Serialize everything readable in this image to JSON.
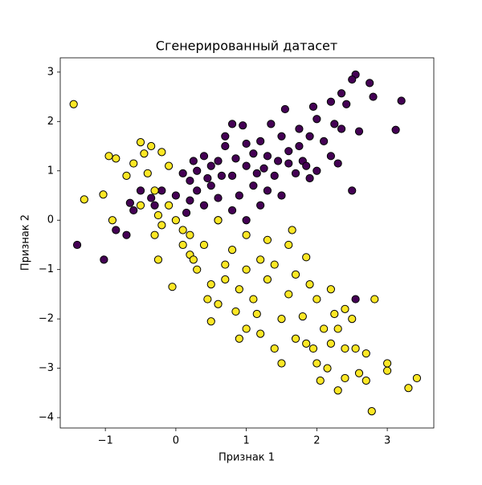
{
  "chart_data": {
    "type": "scatter",
    "title": "Сгенерированный датасет",
    "x_label": "Признак 1",
    "y_label": "Признак 2",
    "xlim": [
      -1.64,
      3.66
    ],
    "ylim": [
      -4.21,
      3.29
    ],
    "xticks": [
      {
        "value": -1,
        "label": "−1"
      },
      0,
      1,
      2,
      3
    ],
    "yticks": [
      {
        "value": -4,
        "label": "−4"
      },
      {
        "value": -3,
        "label": "−3"
      },
      {
        "value": -2,
        "label": "−2"
      },
      {
        "value": -1,
        "label": "−1"
      },
      0,
      1,
      2,
      3
    ],
    "grid": false,
    "series": [
      {
        "color": "#440154",
        "x": [
          2.55,
          2.5,
          2.75,
          2.8,
          3.2,
          2.35,
          2.2,
          1.95,
          1.55,
          2.42,
          2.0,
          3.12,
          2.6,
          2.35,
          2.25,
          1.35,
          1.75,
          0.95,
          0.8,
          2.1,
          1.9,
          1.5,
          1.2,
          1.0,
          0.7,
          0.6,
          0.4,
          0.5,
          0.3,
          0.1,
          0.2,
          0.5,
          0.8,
          1.0,
          1.3,
          1.6,
          1.8,
          2.0,
          1.7,
          1.4,
          1.1,
          0.9,
          0.6,
          0.4,
          0.2,
          0.0,
          -0.2,
          -0.35,
          -0.5,
          -0.6,
          -0.65,
          -0.85,
          -0.7,
          -1.4,
          -1.02,
          -0.3,
          2.5,
          1.5,
          1.2,
          0.8,
          0.6,
          1.0,
          1.3,
          1.9,
          2.2,
          1.1,
          0.7,
          1.6,
          0.3,
          1.45,
          0.85,
          0.15,
          2.55,
          1.15,
          0.45,
          1.75,
          2.3,
          0.25,
          1.85,
          0.65,
          1.25
        ],
        "y": [
          2.95,
          2.85,
          2.78,
          2.5,
          2.42,
          2.57,
          2.4,
          2.3,
          2.25,
          2.35,
          2.05,
          1.83,
          1.8,
          1.85,
          1.95,
          1.95,
          1.85,
          1.92,
          1.95,
          1.6,
          1.7,
          1.7,
          1.6,
          1.55,
          1.5,
          1.2,
          1.3,
          1.1,
          1.0,
          0.95,
          0.8,
          0.7,
          0.9,
          1.1,
          1.3,
          1.4,
          1.2,
          1.0,
          0.95,
          0.9,
          0.7,
          0.5,
          0.45,
          0.3,
          0.4,
          0.5,
          0.6,
          0.45,
          0.6,
          0.2,
          0.35,
          -0.2,
          -0.3,
          -0.5,
          -0.8,
          0.3,
          0.6,
          0.5,
          0.3,
          0.2,
          0.0,
          0.0,
          0.6,
          0.85,
          1.3,
          1.35,
          1.7,
          1.15,
          0.6,
          1.2,
          1.25,
          0.15,
          -1.6,
          0.95,
          0.85,
          1.5,
          1.15,
          1.2,
          1.1,
          0.9,
          1.05
        ]
      },
      {
        "color": "#fde725",
        "x": [
          -1.45,
          -0.95,
          -0.85,
          -0.5,
          -0.35,
          -0.2,
          -0.1,
          -0.45,
          -0.6,
          -0.7,
          -1.3,
          -1.03,
          -0.9,
          -0.4,
          -0.3,
          -0.5,
          -0.25,
          -0.1,
          0.0,
          0.2,
          0.1,
          -0.3,
          -0.25,
          -0.05,
          0.2,
          0.4,
          0.3,
          0.5,
          0.45,
          0.6,
          0.7,
          0.5,
          0.85,
          0.9,
          1.0,
          0.8,
          1.0,
          1.2,
          1.3,
          1.1,
          1.0,
          1.2,
          1.4,
          1.5,
          1.6,
          1.4,
          1.6,
          1.7,
          1.85,
          1.9,
          2.0,
          1.8,
          2.1,
          1.95,
          2.2,
          2.0,
          2.3,
          2.4,
          2.5,
          2.55,
          2.6,
          2.4,
          2.3,
          2.05,
          2.7,
          2.78,
          3.0,
          3.0,
          3.3,
          3.42,
          2.82,
          2.4,
          2.2,
          1.65,
          1.3,
          0.7,
          0.9,
          1.5,
          1.85,
          2.15,
          2.7,
          0.25,
          0.6,
          0.1,
          -0.2,
          1.15,
          1.7,
          2.25
        ],
        "y": [
          2.35,
          1.3,
          1.25,
          1.58,
          1.5,
          1.38,
          1.1,
          1.35,
          1.15,
          0.9,
          0.42,
          0.52,
          0.0,
          0.95,
          0.6,
          0.3,
          0.1,
          0.3,
          0.0,
          -0.3,
          -0.5,
          -0.3,
          -0.8,
          -1.35,
          -0.7,
          -0.5,
          -1.0,
          -1.3,
          -1.6,
          -1.7,
          -1.2,
          -2.05,
          -1.85,
          -1.4,
          -1.0,
          -0.6,
          -0.3,
          -0.8,
          -1.2,
          -1.6,
          -2.2,
          -2.3,
          -2.6,
          -2.0,
          -1.5,
          -0.9,
          -0.5,
          -1.1,
          -0.75,
          -1.3,
          -1.6,
          -1.95,
          -2.2,
          -2.6,
          -2.5,
          -2.9,
          -2.2,
          -2.6,
          -2.0,
          -2.6,
          -3.1,
          -3.2,
          -3.45,
          -3.25,
          -3.25,
          -3.87,
          -2.9,
          -3.05,
          -3.4,
          -3.2,
          -1.6,
          -1.8,
          -1.4,
          -0.2,
          -0.4,
          -0.9,
          -2.4,
          -2.9,
          -2.5,
          -3.0,
          -2.7,
          -0.8,
          0.0,
          -0.2,
          -0.1,
          -1.9,
          -2.4,
          -1.9
        ]
      }
    ]
  }
}
